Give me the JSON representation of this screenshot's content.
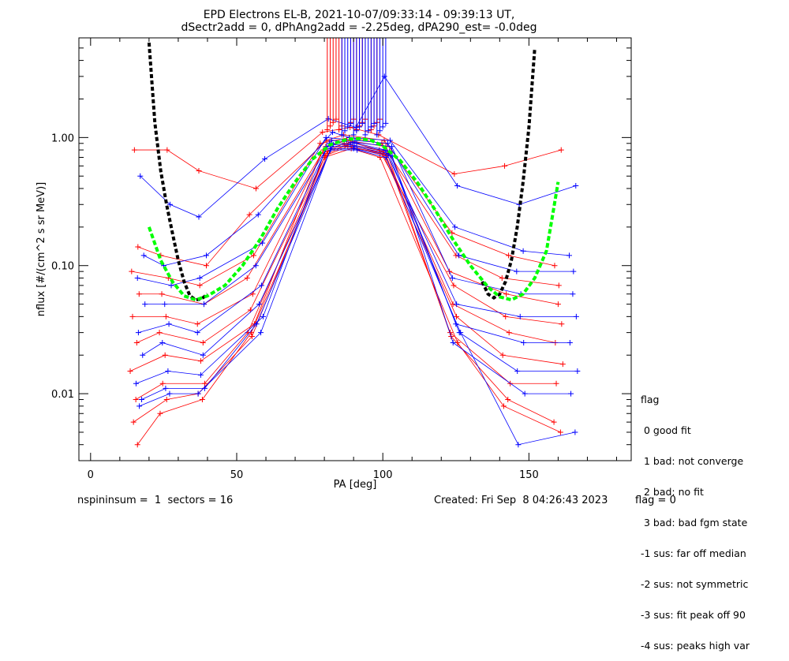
{
  "header": {
    "title_line1": "EPD Electrons EL-B, 2021-10-07/09:33:14 - 09:39:13 UT,",
    "title_line2": "dSectr2add = 0, dPhAng2add = -2.25deg, dPA290_est=  -0.0deg"
  },
  "legend": {
    "title": "flag",
    "entries": [
      " 0 good fit",
      " 1 bad: not converge",
      " 2 bad: no fit",
      " 3 bad: bad fgm state",
      "-1 sus: far off median",
      "-2 sus: not symmetric",
      "-3 sus: fit peak off 90",
      "-4 sus: peaks high var"
    ]
  },
  "footer": {
    "left": "nspininsum =  1  sectors = 16",
    "created": "Created: Fri Sep  8 04:26:43 2023",
    "flag": "flag = 0"
  },
  "colors": {
    "red": "#ff0000",
    "blue": "#0000ff",
    "black": "#000000",
    "green": "#00ff00"
  },
  "chart_data": {
    "type": "line",
    "xlabel": "PA [deg]",
    "ylabel": "nflux [#/(cm^2 s sr MeV)]",
    "xlim": [
      -4,
      185
    ],
    "ylim": [
      0.003,
      6.0
    ],
    "yscale": "log",
    "x_ticks": [
      0,
      50,
      100,
      150
    ],
    "y_ticks": [
      0.01,
      0.1,
      1.0
    ],
    "y_tick_labels": [
      "0.01",
      "0.10",
      "1.00"
    ],
    "series": [
      {
        "color": "red",
        "style": "line-plus",
        "x": [
          15,
          25,
          38,
          55,
          80,
          88,
          100,
          124,
          142,
          160
        ],
        "profiles": [
          [
            0.8,
            0.8,
            0.55,
            0.4,
            1.1,
            1.2,
            1.05,
            0.52,
            0.6,
            0.8
          ],
          [
            0.14,
            0.12,
            0.1,
            0.25,
            0.95,
            1.05,
            0.95,
            0.18,
            0.12,
            0.1
          ],
          [
            0.09,
            0.08,
            0.07,
            0.12,
            0.9,
            1.0,
            0.9,
            0.12,
            0.08,
            0.07
          ],
          [
            0.06,
            0.06,
            0.05,
            0.08,
            0.85,
            0.95,
            0.85,
            0.09,
            0.06,
            0.05
          ],
          [
            0.04,
            0.04,
            0.035,
            0.06,
            0.8,
            0.92,
            0.8,
            0.07,
            0.04,
            0.035
          ],
          [
            0.025,
            0.03,
            0.025,
            0.045,
            0.78,
            0.9,
            0.78,
            0.05,
            0.03,
            0.025
          ],
          [
            0.015,
            0.02,
            0.018,
            0.035,
            0.75,
            0.88,
            0.75,
            0.04,
            0.02,
            0.017
          ],
          [
            0.009,
            0.012,
            0.012,
            0.03,
            0.72,
            0.85,
            0.72,
            0.03,
            0.012,
            0.012
          ],
          [
            0.006,
            0.009,
            0.01,
            0.028,
            0.7,
            0.82,
            0.7,
            0.025,
            0.008,
            0.005
          ],
          [
            0.004,
            0.007,
            0.009,
            0.03,
            0.75,
            0.86,
            0.74,
            0.028,
            0.009,
            0.006
          ]
        ]
      },
      {
        "color": "blue",
        "style": "line-plus",
        "x": [
          17,
          26,
          38,
          58,
          82,
          90,
          102,
          125,
          147,
          165
        ],
        "profiles": [
          [
            0.5,
            0.3,
            0.24,
            0.68,
            1.4,
            1.2,
            3.0,
            0.42,
            0.3,
            0.42
          ],
          [
            0.12,
            0.1,
            0.12,
            0.25,
            1.1,
            1.0,
            0.95,
            0.2,
            0.13,
            0.12
          ],
          [
            0.08,
            0.07,
            0.08,
            0.15,
            1.0,
            0.95,
            0.9,
            0.12,
            0.09,
            0.09
          ],
          [
            0.05,
            0.05,
            0.05,
            0.1,
            0.95,
            0.92,
            0.85,
            0.08,
            0.06,
            0.06
          ],
          [
            0.03,
            0.035,
            0.03,
            0.07,
            0.9,
            0.9,
            0.8,
            0.05,
            0.04,
            0.04
          ],
          [
            0.02,
            0.025,
            0.02,
            0.05,
            0.88,
            0.88,
            0.78,
            0.035,
            0.025,
            0.025
          ],
          [
            0.012,
            0.015,
            0.014,
            0.04,
            0.85,
            0.85,
            0.75,
            0.03,
            0.015,
            0.015
          ],
          [
            0.009,
            0.011,
            0.011,
            0.035,
            0.82,
            0.82,
            0.72,
            0.025,
            0.01,
            0.01
          ],
          [
            0.008,
            0.01,
            0.01,
            0.03,
            0.8,
            0.8,
            0.7,
            0.03,
            0.004,
            0.005
          ]
        ]
      },
      {
        "color": "black",
        "style": "dashed",
        "x": [
          20,
          22,
          24,
          26,
          28,
          30,
          32,
          34,
          36,
          38,
          40,
          134,
          136,
          138,
          140,
          142,
          144,
          146,
          148,
          150,
          152
        ],
        "y": [
          5.5,
          1.3,
          0.55,
          0.3,
          0.18,
          0.11,
          0.075,
          0.058,
          0.054,
          0.055,
          0.06,
          0.075,
          0.06,
          0.056,
          0.06,
          0.075,
          0.11,
          0.2,
          0.45,
          1.2,
          5.0
        ]
      },
      {
        "color": "green",
        "style": "dashed",
        "x": [
          20,
          24,
          28,
          32,
          36,
          40,
          46,
          52,
          58,
          64,
          70,
          76,
          82,
          88,
          92,
          96,
          100,
          106,
          112,
          118,
          124,
          130,
          136,
          140,
          144,
          148,
          152,
          156,
          158,
          160
        ],
        "y": [
          0.2,
          0.11,
          0.075,
          0.058,
          0.054,
          0.058,
          0.07,
          0.1,
          0.16,
          0.28,
          0.45,
          0.68,
          0.88,
          0.97,
          0.98,
          0.95,
          0.86,
          0.66,
          0.44,
          0.27,
          0.16,
          0.1,
          0.068,
          0.057,
          0.054,
          0.06,
          0.08,
          0.13,
          0.24,
          0.45
        ]
      }
    ],
    "spikes_red": [
      81,
      82,
      83,
      84,
      85,
      86,
      89,
      90,
      91,
      92,
      93,
      94,
      96,
      97,
      98,
      99
    ],
    "spikes_blue": [
      86,
      87,
      88,
      89,
      90,
      91,
      92,
      93,
      94,
      95,
      96,
      97,
      98,
      99,
      100,
      101
    ]
  }
}
